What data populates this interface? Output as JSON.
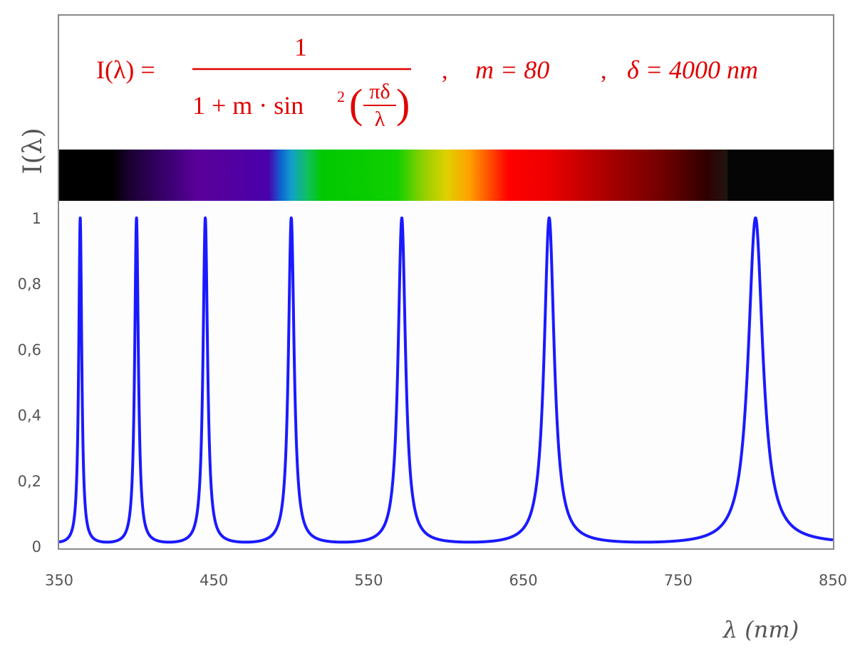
{
  "chart_data": {
    "type": "line",
    "formula": {
      "lhs": "I(λ) =",
      "numerator": "1",
      "denominator": "1 + m · sin² (πδ/λ)",
      "denominator_prefix": "1 + m · sin",
      "power": "2",
      "inner_num": "πδ",
      "inner_den": "λ",
      "param_m": "m = 80",
      "param_delta": "δ = 4000 nm",
      "separator": ","
    },
    "parameters": {
      "m": 80,
      "delta_nm": 4000
    },
    "xlabel": "λ (nm)",
    "ylabel": "I(λ)",
    "xlim": [
      350,
      850
    ],
    "ylim": [
      0,
      1
    ],
    "x_ticks": [
      "350",
      "450",
      "550",
      "650",
      "750",
      "850"
    ],
    "y_ticks": [
      "0",
      "0,2",
      "0,4",
      "0,6",
      "0,8",
      "1"
    ],
    "peaks_nm": [
      364,
      400,
      444,
      500,
      571,
      667,
      800
    ],
    "grid": false,
    "series_color": "#1a1aff",
    "formula_color": "#e00000",
    "spectrum_band": {
      "stops": [
        {
          "nm": 350,
          "color": "#000000"
        },
        {
          "nm": 384,
          "color": "#000000"
        },
        {
          "nm": 395,
          "color": "#1a0030"
        },
        {
          "nm": 420,
          "color": "#3a0070"
        },
        {
          "nm": 440,
          "color": "#5a009a"
        },
        {
          "nm": 485,
          "color": "#4a00aa"
        },
        {
          "nm": 493,
          "color": "#1060d0"
        },
        {
          "nm": 500,
          "color": "#10a0c8"
        },
        {
          "nm": 510,
          "color": "#10c060"
        },
        {
          "nm": 520,
          "color": "#00c800"
        },
        {
          "nm": 568,
          "color": "#10d000"
        },
        {
          "nm": 585,
          "color": "#90d000"
        },
        {
          "nm": 600,
          "color": "#e0d000"
        },
        {
          "nm": 615,
          "color": "#ffa000"
        },
        {
          "nm": 630,
          "color": "#ff4000"
        },
        {
          "nm": 640,
          "color": "#ff0000"
        },
        {
          "nm": 665,
          "color": "#ee0000"
        },
        {
          "nm": 700,
          "color": "#b00000"
        },
        {
          "nm": 740,
          "color": "#700000"
        },
        {
          "nm": 768,
          "color": "#300000"
        },
        {
          "nm": 781,
          "color": "#201510"
        },
        {
          "nm": 782,
          "color": "#050505"
        },
        {
          "nm": 850,
          "color": "#050505"
        }
      ]
    }
  }
}
